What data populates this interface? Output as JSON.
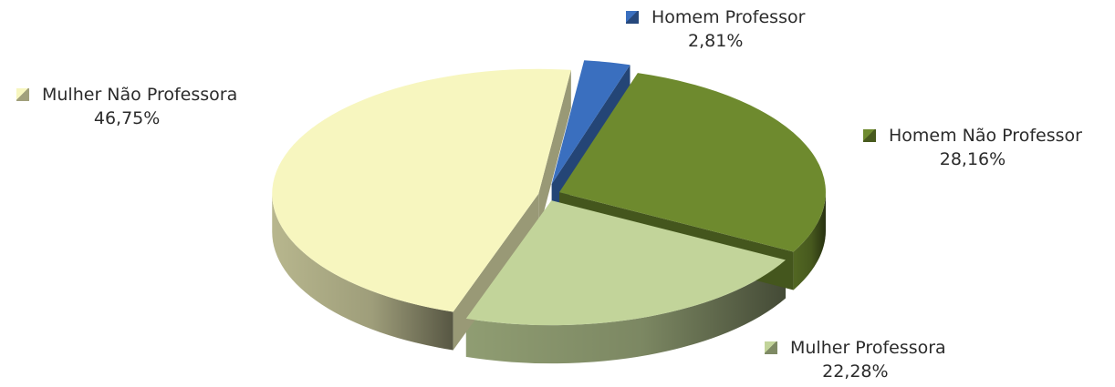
{
  "chart_data": {
    "type": "pie",
    "title": "",
    "legend": "none",
    "slices": [
      {
        "label": "Homem Professor",
        "value": 2.81,
        "display": "2,81%",
        "color": "#3a6fbf"
      },
      {
        "label": "Homem Não Professor",
        "value": 28.16,
        "display": "28,16%",
        "color": "#6e8a2e"
      },
      {
        "label": "Mulher Professora",
        "value": 22.28,
        "display": "22,28%",
        "color": "#c2d49a"
      },
      {
        "label": "Mulher Não Professora",
        "value": 46.75,
        "display": "46,75%",
        "color": "#f7f6bf"
      }
    ],
    "exploded": [
      0,
      1,
      2,
      3
    ]
  }
}
